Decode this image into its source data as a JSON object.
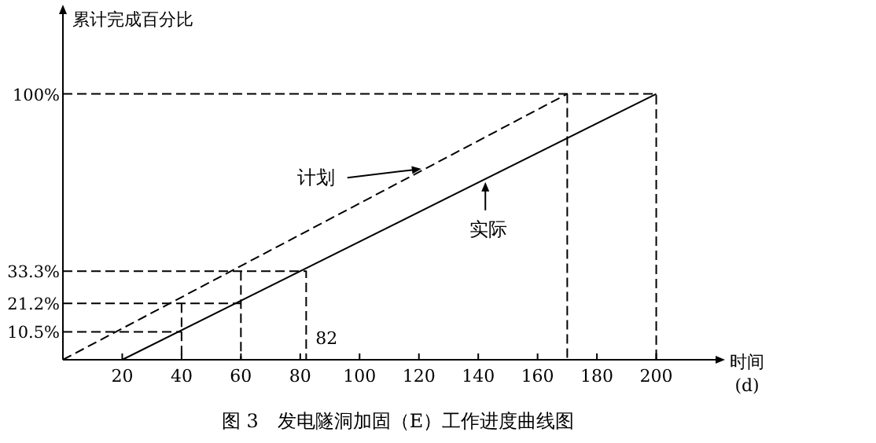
{
  "chart_data": {
    "type": "line",
    "title": "图 3　发电隧洞加固（E）工作进度曲线图",
    "xlabel": "时间",
    "ylabel": "累计完成百分比",
    "annotations": [
      {
        "text": "82",
        "x": 82,
        "y": 0
      },
      "(d)"
    ],
    "xlim": [
      0,
      220
    ],
    "ylim": [
      0,
      130
    ],
    "xticks": [
      20,
      40,
      60,
      80,
      100,
      120,
      140,
      160,
      180,
      200
    ],
    "yticks": [
      {
        "value": 10.5,
        "label": "10.5%"
      },
      {
        "value": 21.2,
        "label": "21.2%"
      },
      {
        "value": 33.3,
        "label": "33.3%"
      },
      {
        "value": 100,
        "label": "100%"
      }
    ],
    "series": [
      {
        "name": "计划",
        "color": "#000000",
        "line_style": "dashed",
        "x": [
          0,
          170
        ],
        "values": [
          0,
          100
        ]
      },
      {
        "name": "实际",
        "color": "#000000",
        "line_style": "solid",
        "x": [
          20,
          200
        ],
        "values": [
          0,
          100
        ]
      },
      {
        "color": "#000000",
        "line_style": "dashed",
        "x": [
          0,
          40
        ],
        "values": [
          10.5,
          10.5
        ]
      },
      {
        "color": "#000000",
        "line_style": "dashed",
        "x": [
          0,
          60
        ],
        "values": [
          21.2,
          21.2
        ]
      },
      {
        "color": "#000000",
        "line_style": "dashed",
        "x": [
          40,
          40
        ],
        "values": [
          21.2,
          0
        ]
      },
      {
        "color": "#000000",
        "line_style": "dashed",
        "x": [
          0,
          82,
          82
        ],
        "values": [
          33.3,
          33.3,
          0
        ]
      },
      {
        "color": "#000000",
        "line_style": "dashed",
        "x": [
          60,
          60
        ],
        "values": [
          33.3,
          0
        ]
      },
      {
        "color": "#000000",
        "line_style": "dashed",
        "x": [
          0,
          200,
          200
        ],
        "values": [
          100,
          100,
          0
        ]
      },
      {
        "color": "#000000",
        "line_style": "dashed",
        "x": [
          170,
          170
        ],
        "values": [
          100,
          0
        ]
      }
    ]
  }
}
